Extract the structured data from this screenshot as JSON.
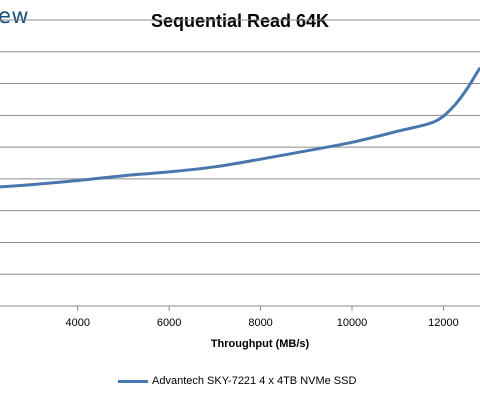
{
  "watermark": "ew",
  "chart_data": {
    "type": "line",
    "title": "Sequential Read 64K",
    "xlabel": "Throughput (MB/s)",
    "ylabel": "",
    "xlim": [
      2300,
      12800
    ],
    "ylim": [
      0,
      9
    ],
    "grid": true,
    "x_ticks": [
      4000,
      6000,
      8000,
      10000,
      12000
    ],
    "series": [
      {
        "name": "Advantech SKY-7221 4 x 4TB NVMe SSD",
        "color": "#4a76ae",
        "x": [
          2300,
          3000,
          4000,
          5000,
          6000,
          7000,
          8000,
          9000,
          10000,
          11000,
          11800,
          12200,
          12500,
          12800
        ],
        "y": [
          3.75,
          3.82,
          3.95,
          4.1,
          4.22,
          4.38,
          4.62,
          4.88,
          5.15,
          5.5,
          5.8,
          6.25,
          6.8,
          7.5
        ]
      }
    ]
  }
}
